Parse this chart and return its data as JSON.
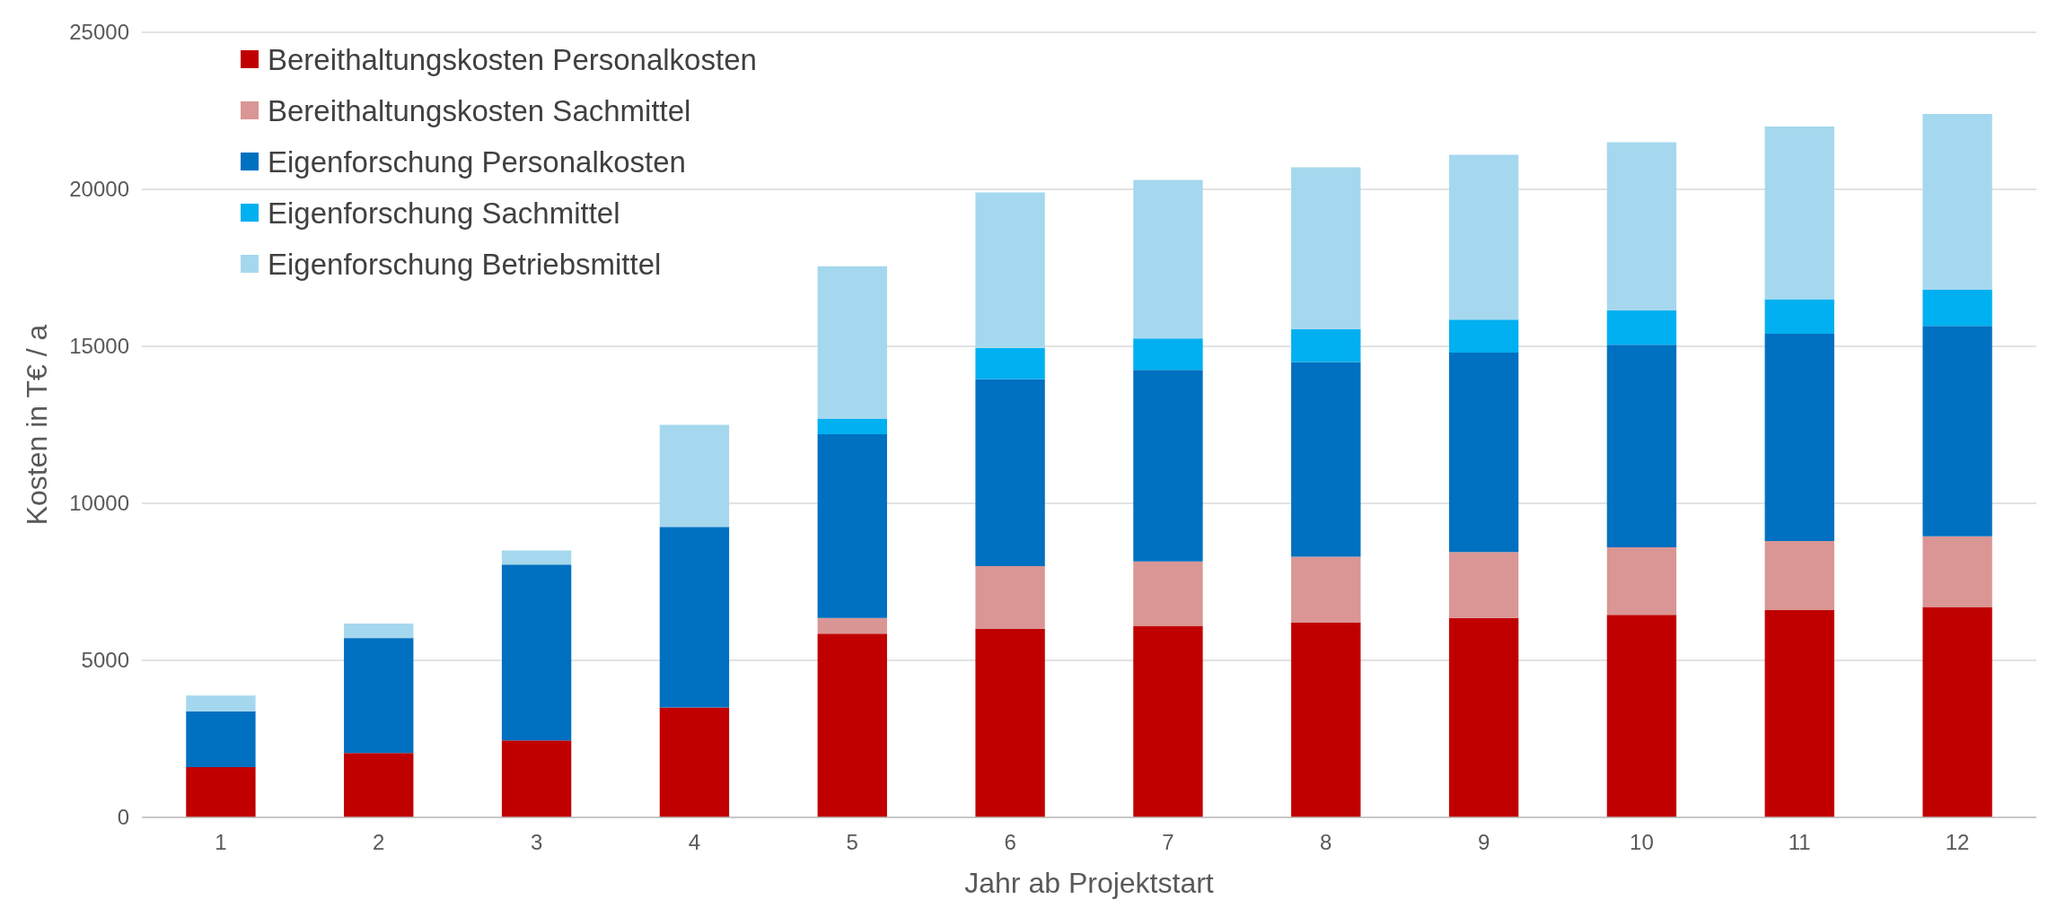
{
  "chart_data": {
    "type": "bar",
    "stacked": true,
    "xlabel": "Jahr ab Projektstart",
    "ylabel": "Kosten in T€ / a",
    "categories": [
      "1",
      "2",
      "3",
      "4",
      "5",
      "6",
      "7",
      "8",
      "9",
      "10",
      "11",
      "12"
    ],
    "series": [
      {
        "name": "Bereithaltungskosten Personalkosten",
        "color": "#c00000",
        "values": [
          1600,
          2050,
          2450,
          3500,
          5850,
          6000,
          6100,
          6200,
          6350,
          6450,
          6600,
          6700
        ]
      },
      {
        "name": "Bereithaltungskosten Sachmittel",
        "color": "#d99694",
        "values": [
          0,
          0,
          0,
          0,
          500,
          2000,
          2050,
          2100,
          2100,
          2150,
          2200,
          2250
        ]
      },
      {
        "name": "Eigenforschung Personalkosten",
        "color": "#0070c0",
        "values": [
          1780,
          3660,
          5600,
          5750,
          5850,
          5950,
          6100,
          6200,
          6350,
          6450,
          6600,
          6700
        ]
      },
      {
        "name": "Eigenforschung Sachmittel",
        "color": "#00b0f0",
        "values": [
          0,
          0,
          0,
          0,
          500,
          1000,
          1000,
          1050,
          1050,
          1100,
          1100,
          1150
        ]
      },
      {
        "name": "Eigenforschung Betriebsmittel",
        "color": "#a5d8ee",
        "values": [
          500,
          460,
          450,
          3250,
          4850,
          4950,
          5050,
          5150,
          5250,
          5350,
          5500,
          5600
        ]
      }
    ],
    "ylim": [
      0,
      25000
    ],
    "yticks": [
      0,
      5000,
      10000,
      15000,
      20000,
      25000
    ],
    "grid": "y",
    "legend": "top left"
  }
}
